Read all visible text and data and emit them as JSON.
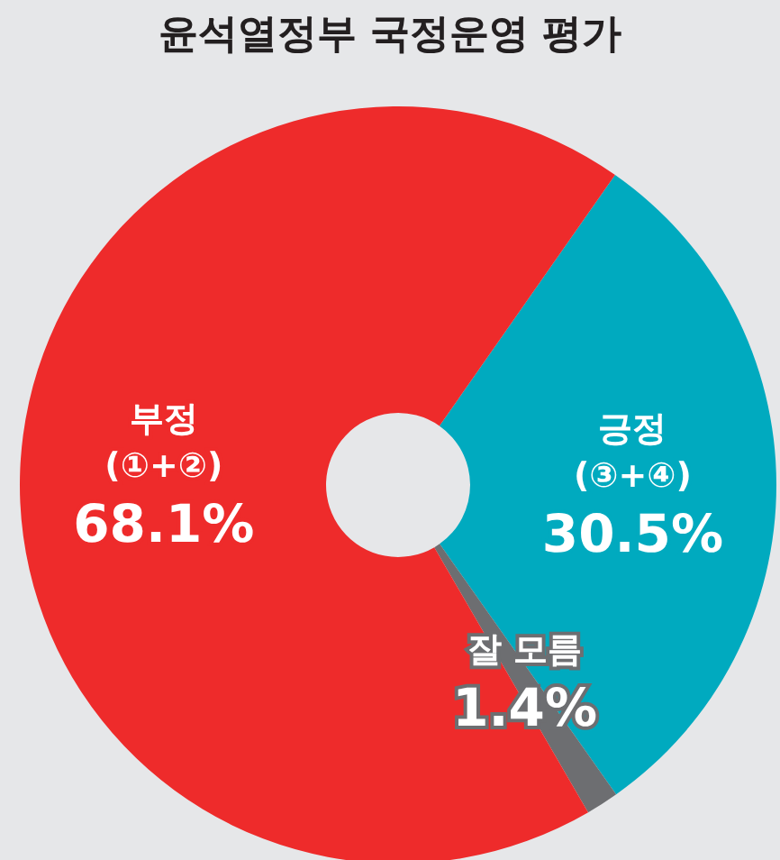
{
  "chart_data": {
    "type": "donut",
    "title": "윤석열정부 국정운영 평가",
    "categories": [
      "긍정\n(③+④)",
      "잘 모름",
      "부정\n(①+②)"
    ],
    "values": [
      30.5,
      1.4,
      68.1
    ],
    "colors": [
      "#00aabf",
      "#6d6e71",
      "#ee2b2b"
    ],
    "value_labels": [
      "30.5%",
      "1.4%",
      "68.1%"
    ]
  }
}
